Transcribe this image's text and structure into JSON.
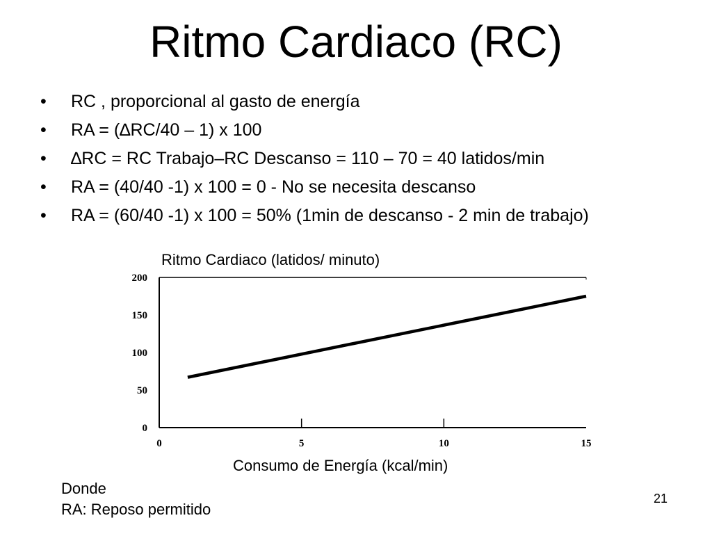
{
  "slide": {
    "title": "Ritmo Cardiaco (RC)",
    "bullets": [
      "RC , proporcional al gasto de energía",
      "RA = (∆RC/40 – 1) x 100",
      "∆RC = RC Trabajo–RC Descanso  = 110 – 70 = 40 latidos/min",
      "RA = (40/40 -1) x 100 = 0   -   No se necesita descanso",
      "RA = (60/40 -1) x 100 = 50%  (1min de descanso - 2 min de trabajo)"
    ],
    "bullet_symbol": "•",
    "footnote": {
      "line1": "Donde",
      "line2": "RA: Reposo permitido"
    },
    "page_number": "21"
  },
  "chart_data": {
    "type": "line",
    "title": "",
    "ylabel": "Ritmo Cardiaco (latidos/ minuto)",
    "xlabel": "Consumo de Energía (kcal/min)",
    "xlim": [
      0,
      15
    ],
    "ylim": [
      0,
      200
    ],
    "x_ticks": [
      "0",
      "5",
      "10",
      "15"
    ],
    "y_ticks": [
      "0",
      "50",
      "100",
      "150",
      "200"
    ],
    "grid": false,
    "legend": "none",
    "series": [
      {
        "x": [
          1,
          15
        ],
        "y": [
          67,
          175
        ],
        "color": "#000000"
      }
    ]
  }
}
